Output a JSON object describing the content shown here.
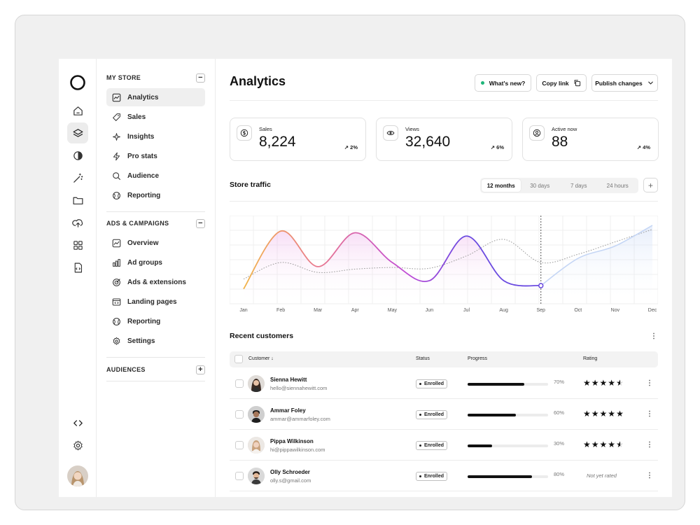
{
  "nav": {
    "my_store": {
      "title": "MY STORE",
      "toggle": "−",
      "items": [
        {
          "label": "Analytics",
          "icon": "chart-icon"
        },
        {
          "label": "Sales",
          "icon": "tag-icon"
        },
        {
          "label": "Insights",
          "icon": "sparkle-icon"
        },
        {
          "label": "Pro stats",
          "icon": "lightning-icon"
        },
        {
          "label": "Audience",
          "icon": "search-icon"
        },
        {
          "label": "Reporting",
          "icon": "globe-icon"
        }
      ]
    },
    "ads": {
      "title": "ADS & CAMPAIGNS",
      "toggle": "−",
      "items": [
        {
          "label": "Overview",
          "icon": "chart-icon"
        },
        {
          "label": "Ad groups",
          "icon": "bar-chart-icon"
        },
        {
          "label": "Ads & extensions",
          "icon": "target-icon"
        },
        {
          "label": "Landing pages",
          "icon": "code-window-icon"
        },
        {
          "label": "Reporting",
          "icon": "globe-icon"
        },
        {
          "label": "Settings",
          "icon": "gear-icon"
        }
      ]
    },
    "audiences": {
      "title": "AUDIENCES",
      "toggle": "+"
    }
  },
  "header": {
    "title": "Analytics",
    "whats_new": "What's new?",
    "copy_link": "Copy link",
    "publish": "Publish changes"
  },
  "stats": [
    {
      "label": "Sales",
      "value": "8,224",
      "delta": "↗ 2%",
      "icon": "dollar-icon"
    },
    {
      "label": "Views",
      "value": "32,640",
      "delta": "↗ 6%",
      "icon": "eye-icon"
    },
    {
      "label": "Active now",
      "value": "88",
      "delta": "↗ 4%",
      "icon": "user-icon"
    }
  ],
  "traffic": {
    "title": "Store traffic",
    "ranges": [
      "12 months",
      "30 days",
      "7 days",
      "24 hours"
    ],
    "selected_range": "12 months",
    "add": "+"
  },
  "chart_data": {
    "type": "line",
    "x": [
      "Jan",
      "Feb",
      "Mar",
      "Apr",
      "May",
      "Jun",
      "Jul",
      "Aug",
      "Sep",
      "Oct",
      "Nov",
      "Dec"
    ],
    "series": [
      {
        "values": [
          0.18,
          0.88,
          0.45,
          0.86,
          0.5,
          0.28,
          0.82,
          0.28,
          0.22,
          0.55,
          0.7,
          0.95
        ]
      },
      {
        "values": [
          0.3,
          0.5,
          0.38,
          0.42,
          0.44,
          0.43,
          0.58,
          0.78,
          0.5,
          0.6,
          0.75,
          0.9
        ]
      }
    ],
    "forecast_from": "Sep",
    "grid": true
  },
  "customers": {
    "title": "Recent customers",
    "columns": {
      "customer": "Customer",
      "status": "Status",
      "progress": "Progress",
      "rating": "Rating"
    },
    "rows": [
      {
        "name": "Sienna Hewitt",
        "email": "hello@siennahewitt.com",
        "status": "Enrolled",
        "progress": 0.7,
        "progress_label": "70%",
        "rating": 4.5,
        "stars": "★★★★★",
        "rating_text": ""
      },
      {
        "name": "Ammar Foley",
        "email": "ammar@ammarfoley.com",
        "status": "Enrolled",
        "progress": 0.6,
        "progress_label": "60%",
        "rating": 5,
        "stars": "★★★★★",
        "rating_text": ""
      },
      {
        "name": "Pippa Wilkinson",
        "email": "hi@pippawilkinson.com",
        "status": "Enrolled",
        "progress": 0.3,
        "progress_label": "30%",
        "rating": 4.5,
        "stars": "★★★★★",
        "rating_text": ""
      },
      {
        "name": "Olly Schroeder",
        "email": "olly.s@gmail.com",
        "status": "Enrolled",
        "progress": 0.8,
        "progress_label": "80%",
        "rating": null,
        "stars": "",
        "rating_text": "Not yet rated"
      }
    ]
  }
}
